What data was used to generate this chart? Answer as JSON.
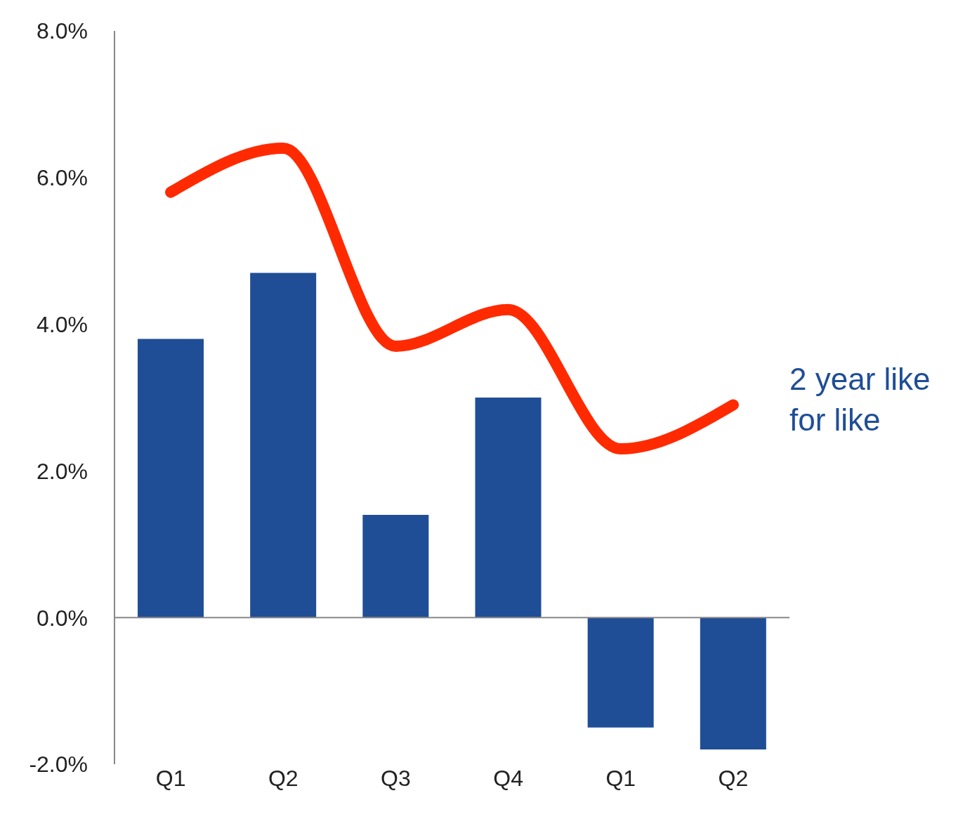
{
  "chart_data": {
    "type": "bar",
    "categories": [
      "Q1",
      "Q2",
      "Q3",
      "Q4",
      "Q1",
      "Q2"
    ],
    "series": [
      {
        "color": "#1f4e96",
        "values": [
          3.8,
          4.7,
          1.4,
          3.0,
          -1.5,
          -1.8
        ]
      },
      {
        "type": "line",
        "name": "2 year like for like",
        "color": "#ff2a00",
        "values": [
          5.8,
          6.4,
          3.7,
          4.2,
          2.3,
          2.9
        ]
      }
    ],
    "ylim": [
      -2,
      8
    ],
    "yticks": [
      {
        "value": -2,
        "label": "-2.0%"
      },
      {
        "value": 0,
        "label": "0.0%"
      },
      {
        "value": 2,
        "label": "2.0%"
      },
      {
        "value": 4,
        "label": "4.0%"
      },
      {
        "value": 6,
        "label": "6.0%"
      },
      {
        "value": 8,
        "label": "8.0%"
      }
    ],
    "ref_lines": [
      {
        "axis": "y",
        "value": 0,
        "color": "#888888"
      }
    ],
    "legend": false,
    "marker": "none",
    "line_style": "solid"
  }
}
